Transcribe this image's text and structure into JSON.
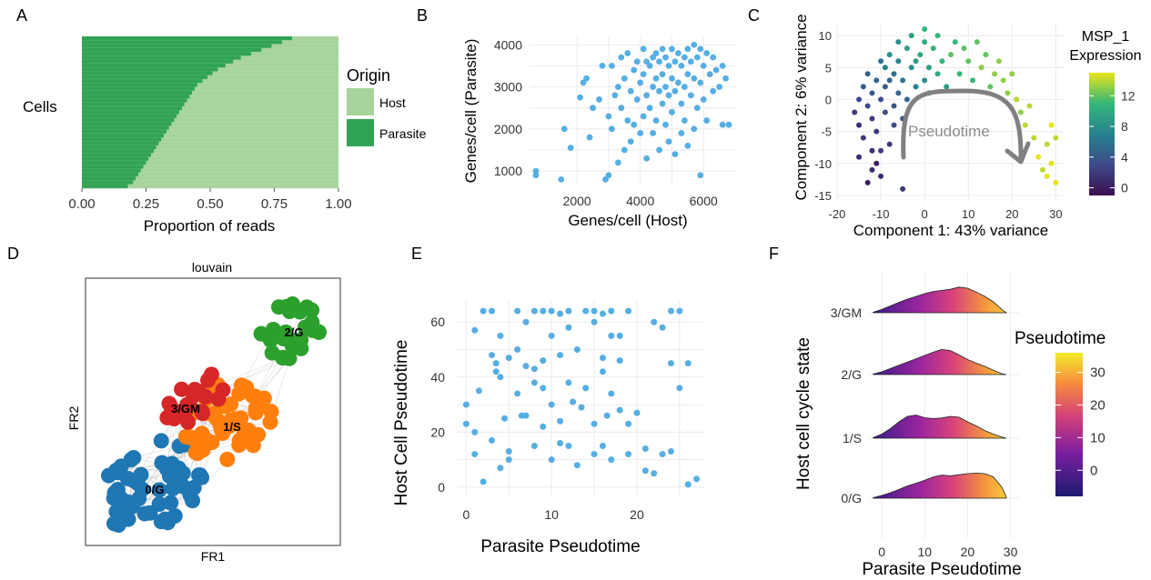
{
  "colors": {
    "host": "#a6d49a",
    "parasite": "#31a354",
    "point_blue": "#56aee3",
    "grid": "#ebebeb",
    "cluster_0": "#1f77b4",
    "cluster_1": "#ff7f0e",
    "cluster_2": "#2ca02c",
    "cluster_3": "#d62728",
    "arrow": "#7f7f7f"
  },
  "chart_data": [
    {
      "panel": "A",
      "type": "bar",
      "orientation": "horizontal-stacked",
      "title": "",
      "xlabel": "Proportion of reads",
      "ylabel": "Cells",
      "xlim": [
        0,
        1
      ],
      "xticks": [
        "0.00",
        "0.25",
        "0.50",
        "0.75",
        "1.00"
      ],
      "legend": {
        "title": "Origin",
        "placement": "right",
        "entries": [
          "Host",
          "Parasite"
        ]
      },
      "series": [
        {
          "name": "Host",
          "description": "host proportion per cell, sorted; parasite fraction rises from ~0.18 (bottom) to ~0.82 (top)"
        },
        {
          "name": "Parasite"
        }
      ],
      "parasite_fraction_sorted": [
        0.18,
        0.2,
        0.21,
        0.22,
        0.23,
        0.24,
        0.25,
        0.26,
        0.27,
        0.28,
        0.29,
        0.3,
        0.31,
        0.32,
        0.33,
        0.34,
        0.35,
        0.36,
        0.37,
        0.38,
        0.39,
        0.4,
        0.41,
        0.42,
        0.43,
        0.44,
        0.45,
        0.47,
        0.49,
        0.51,
        0.53,
        0.56,
        0.59,
        0.62,
        0.66,
        0.7,
        0.74,
        0.78,
        0.82
      ]
    },
    {
      "panel": "B",
      "type": "scatter",
      "title": "",
      "xlabel": "Genes/cell (Host)",
      "ylabel": "Genes/cell (Parasite)",
      "xlim": [
        500,
        7000
      ],
      "ylim": [
        700,
        4200
      ],
      "xticks": [
        "2000",
        "4000",
        "6000"
      ],
      "yticks": [
        "1000",
        "2000",
        "3000",
        "4000"
      ],
      "grid": true,
      "points": [
        [
          700,
          1000
        ],
        [
          700,
          900
        ],
        [
          1500,
          800
        ],
        [
          1600,
          2000
        ],
        [
          1800,
          1550
        ],
        [
          2100,
          2750
        ],
        [
          2200,
          3100
        ],
        [
          2300,
          3200
        ],
        [
          2400,
          1800
        ],
        [
          2500,
          2500
        ],
        [
          2700,
          2700
        ],
        [
          2800,
          3500
        ],
        [
          2900,
          800
        ],
        [
          3000,
          2300
        ],
        [
          3000,
          900
        ],
        [
          3100,
          3500
        ],
        [
          3100,
          2000
        ],
        [
          3200,
          2800
        ],
        [
          3300,
          3000
        ],
        [
          3300,
          1200
        ],
        [
          3400,
          3700
        ],
        [
          3400,
          2500
        ],
        [
          3500,
          3200
        ],
        [
          3500,
          1500
        ],
        [
          3600,
          3800
        ],
        [
          3600,
          2200
        ],
        [
          3700,
          2900
        ],
        [
          3700,
          1700
        ],
        [
          3800,
          3400
        ],
        [
          3800,
          2100
        ],
        [
          3900,
          3600
        ],
        [
          3900,
          2700
        ],
        [
          4000,
          3100
        ],
        [
          4000,
          1900
        ],
        [
          4100,
          3900
        ],
        [
          4100,
          3300
        ],
        [
          4100,
          2300
        ],
        [
          4200,
          3600
        ],
        [
          4200,
          2800
        ],
        [
          4200,
          1300
        ],
        [
          4300,
          3500
        ],
        [
          4300,
          2500
        ],
        [
          4400,
          3700
        ],
        [
          4400,
          3000
        ],
        [
          4400,
          1900
        ],
        [
          4500,
          3800
        ],
        [
          4500,
          3200
        ],
        [
          4500,
          2200
        ],
        [
          4600,
          3600
        ],
        [
          4600,
          2900
        ],
        [
          4600,
          1500
        ],
        [
          4700,
          3900
        ],
        [
          4700,
          3300
        ],
        [
          4700,
          2600
        ],
        [
          4800,
          3700
        ],
        [
          4800,
          3000
        ],
        [
          4800,
          2100
        ],
        [
          4900,
          3500
        ],
        [
          4900,
          2800
        ],
        [
          4900,
          1700
        ],
        [
          5000,
          3900
        ],
        [
          5000,
          3200
        ],
        [
          5000,
          2400
        ],
        [
          5100,
          3600
        ],
        [
          5100,
          2900
        ],
        [
          5100,
          1400
        ],
        [
          5200,
          3800
        ],
        [
          5200,
          3100
        ],
        [
          5300,
          3500
        ],
        [
          5300,
          2600
        ],
        [
          5300,
          1900
        ],
        [
          5400,
          3700
        ],
        [
          5400,
          3000
        ],
        [
          5400,
          2200
        ],
        [
          5500,
          3900
        ],
        [
          5500,
          3300
        ],
        [
          5500,
          1600
        ],
        [
          5600,
          3600
        ],
        [
          5600,
          2800
        ],
        [
          5700,
          4000
        ],
        [
          5700,
          3200
        ],
        [
          5700,
          2000
        ],
        [
          5800,
          3700
        ],
        [
          5800,
          2500
        ],
        [
          5900,
          3900
        ],
        [
          5900,
          3100
        ],
        [
          5900,
          900
        ],
        [
          6000,
          3500
        ],
        [
          6000,
          2700
        ],
        [
          6100,
          3800
        ],
        [
          6100,
          2200
        ],
        [
          6200,
          3300
        ],
        [
          6300,
          3700
        ],
        [
          6300,
          2900
        ],
        [
          6400,
          3400
        ],
        [
          6500,
          3000
        ],
        [
          6600,
          3500
        ],
        [
          6600,
          2100
        ],
        [
          6700,
          3200
        ],
        [
          6800,
          2100
        ]
      ]
    },
    {
      "panel": "C",
      "type": "scatter",
      "title": "",
      "xlabel": "Component 1: 43% variance",
      "ylabel": "Component 2: 6% variance",
      "xlim": [
        -20,
        32
      ],
      "ylim": [
        -16,
        12
      ],
      "xticks": [
        "-20",
        "-10",
        "0",
        "10",
        "20",
        "30"
      ],
      "yticks": [
        "-15",
        "-10",
        "-5",
        "0",
        "5",
        "10"
      ],
      "grid": true,
      "annotation": "Pseudotime",
      "colorbar": {
        "title": "MSP_1\nExpression",
        "range": [
          -1,
          15
        ],
        "ticks": [
          "0",
          "4",
          "8",
          "12"
        ]
      },
      "points": [
        [
          -16,
          -2,
          2
        ],
        [
          -15,
          0,
          3
        ],
        [
          -15,
          -4,
          1
        ],
        [
          -14,
          2,
          4
        ],
        [
          -14,
          -6,
          2
        ],
        [
          -13,
          -1,
          3
        ],
        [
          -13,
          4,
          5
        ],
        [
          -12,
          -8,
          1
        ],
        [
          -12,
          1,
          4
        ],
        [
          -12,
          -3,
          2
        ],
        [
          -11,
          3,
          5
        ],
        [
          -11,
          -10,
          0
        ],
        [
          -11,
          -5,
          2
        ],
        [
          -10,
          0,
          3
        ],
        [
          -10,
          6,
          6
        ],
        [
          -10,
          -12,
          1
        ],
        [
          -9,
          2,
          4
        ],
        [
          -9,
          -2,
          3
        ],
        [
          -9,
          5,
          7
        ],
        [
          -8,
          -7,
          2
        ],
        [
          -8,
          3,
          5
        ],
        [
          -8,
          7,
          8
        ],
        [
          -7,
          -1,
          4
        ],
        [
          -7,
          4,
          6
        ],
        [
          -7,
          -4,
          3
        ],
        [
          -6,
          1,
          5
        ],
        [
          -6,
          6,
          7
        ],
        [
          -6,
          9,
          8
        ],
        [
          -5,
          -3,
          4
        ],
        [
          -5,
          3,
          6
        ],
        [
          -5,
          -14,
          2
        ],
        [
          -4,
          8,
          9
        ],
        [
          -4,
          0,
          5
        ],
        [
          -3,
          5,
          8
        ],
        [
          -3,
          10,
          9
        ],
        [
          -2,
          2,
          7
        ],
        [
          -2,
          6,
          9
        ],
        [
          -1,
          7,
          10
        ],
        [
          0,
          3,
          8
        ],
        [
          0,
          9,
          10
        ],
        [
          0,
          11,
          11
        ],
        [
          1,
          5,
          9
        ],
        [
          1,
          1,
          8
        ],
        [
          2,
          8,
          11
        ],
        [
          3,
          4,
          10
        ],
        [
          3,
          10,
          11
        ],
        [
          4,
          6,
          11
        ],
        [
          5,
          2,
          9
        ],
        [
          6,
          7,
          12
        ],
        [
          7,
          9,
          11
        ],
        [
          8,
          4,
          11
        ],
        [
          9,
          8,
          12
        ],
        [
          10,
          6,
          12
        ],
        [
          11,
          3,
          11
        ],
        [
          12,
          9,
          12
        ],
        [
          13,
          5,
          13
        ],
        [
          14,
          7,
          12
        ],
        [
          15,
          2,
          12
        ],
        [
          16,
          4,
          13
        ],
        [
          17,
          6,
          13
        ],
        [
          18,
          3,
          13
        ],
        [
          19,
          1,
          13
        ],
        [
          20,
          4,
          13
        ],
        [
          21,
          0,
          14
        ],
        [
          22,
          -2,
          13
        ],
        [
          23,
          -4,
          14
        ],
        [
          24,
          -1,
          14
        ],
        [
          25,
          -6,
          14
        ],
        [
          26,
          -9,
          15
        ],
        [
          27,
          -11,
          14
        ],
        [
          28,
          -12,
          15
        ],
        [
          28,
          -7,
          14
        ],
        [
          29,
          -4,
          15
        ],
        [
          29,
          -10,
          15
        ],
        [
          30,
          -13,
          15
        ],
        [
          30,
          -6,
          14
        ],
        [
          -15,
          -9,
          1
        ],
        [
          -13,
          -13,
          0
        ],
        [
          -12,
          -11,
          1
        ],
        [
          -10,
          -8,
          2
        ]
      ]
    },
    {
      "panel": "D",
      "type": "scatter",
      "title": "louvain",
      "xlabel": "FR1",
      "ylabel": "FR2",
      "labels": [
        "0/G",
        "1/S",
        "2/G",
        "3/GM"
      ]
    },
    {
      "panel": "E",
      "type": "scatter",
      "title": "",
      "xlabel": "Parasite Pseudotime",
      "ylabel": "Host Cell Pseudotime",
      "xlim": [
        -1,
        28
      ],
      "ylim": [
        -3,
        68
      ],
      "xticks": [
        "0",
        "10",
        "20"
      ],
      "yticks": [
        "0",
        "20",
        "40",
        "60"
      ],
      "grid": true,
      "points": [
        [
          0,
          30
        ],
        [
          0,
          23
        ],
        [
          1,
          57
        ],
        [
          1,
          20
        ],
        [
          1,
          12
        ],
        [
          1.5,
          35
        ],
        [
          2,
          64
        ],
        [
          2,
          2
        ],
        [
          3,
          64
        ],
        [
          3,
          48
        ],
        [
          3,
          17
        ],
        [
          3.5,
          45
        ],
        [
          3.5,
          42
        ],
        [
          4,
          40
        ],
        [
          4,
          55
        ],
        [
          4,
          7
        ],
        [
          4.5,
          25
        ],
        [
          5,
          13
        ],
        [
          5,
          10
        ],
        [
          5,
          47
        ],
        [
          6,
          64
        ],
        [
          6,
          34
        ],
        [
          6,
          50
        ],
        [
          6.5,
          26
        ],
        [
          7,
          44
        ],
        [
          7,
          60
        ],
        [
          7,
          26
        ],
        [
          8,
          64
        ],
        [
          8,
          15
        ],
        [
          8,
          43
        ],
        [
          8,
          38
        ],
        [
          9,
          64
        ],
        [
          9,
          46
        ],
        [
          9,
          36
        ],
        [
          9,
          22
        ],
        [
          10,
          64
        ],
        [
          10,
          55
        ],
        [
          10,
          30
        ],
        [
          10,
          10
        ],
        [
          11,
          63
        ],
        [
          11,
          48
        ],
        [
          11,
          24
        ],
        [
          11,
          16
        ],
        [
          12,
          64
        ],
        [
          12,
          58
        ],
        [
          12,
          38
        ],
        [
          12,
          15
        ],
        [
          12.5,
          31
        ],
        [
          13,
          50
        ],
        [
          13,
          8
        ],
        [
          13.5,
          29
        ],
        [
          14,
          64
        ],
        [
          14,
          36
        ],
        [
          15,
          64
        ],
        [
          15,
          60
        ],
        [
          15,
          23
        ],
        [
          15,
          12
        ],
        [
          16,
          63
        ],
        [
          16,
          47
        ],
        [
          16,
          42
        ],
        [
          16,
          15
        ],
        [
          16.5,
          26
        ],
        [
          17,
          64
        ],
        [
          17,
          55
        ],
        [
          17,
          34
        ],
        [
          17,
          10
        ],
        [
          18,
          55
        ],
        [
          18,
          46
        ],
        [
          18,
          28
        ],
        [
          19,
          64
        ],
        [
          19,
          23
        ],
        [
          19,
          12
        ],
        [
          20,
          27
        ],
        [
          21,
          14
        ],
        [
          21,
          6
        ],
        [
          22,
          5
        ],
        [
          22,
          60
        ],
        [
          23,
          58
        ],
        [
          23,
          12
        ],
        [
          24,
          64
        ],
        [
          24,
          45
        ],
        [
          24,
          13
        ],
        [
          25,
          64
        ],
        [
          25,
          36
        ],
        [
          26,
          45
        ],
        [
          26,
          1
        ],
        [
          27,
          3
        ]
      ]
    },
    {
      "panel": "F",
      "type": "area",
      "title": "",
      "xlabel": "Parasite Pseudotime",
      "ylabel": "Host cell cycle state",
      "xlim": [
        -3,
        32
      ],
      "xticks": [
        "0",
        "10",
        "20",
        "30"
      ],
      "categories": [
        "0/G",
        "1/S",
        "2/G",
        "3/GM"
      ],
      "colorbar": {
        "title": "Pseudotime",
        "range": [
          -8,
          36
        ],
        "ticks": [
          "0",
          "10",
          "20",
          "30"
        ]
      },
      "density_x": [
        -2,
        0,
        2,
        4,
        6,
        8,
        10,
        12,
        14,
        16,
        18,
        20,
        22,
        24,
        26,
        28,
        29
      ],
      "densities": {
        "0/G": [
          0.02,
          0.1,
          0.2,
          0.32,
          0.45,
          0.55,
          0.66,
          0.78,
          0.85,
          0.82,
          0.86,
          0.9,
          0.92,
          0.9,
          0.78,
          0.4,
          0.05
        ],
        "1/S": [
          0.02,
          0.15,
          0.35,
          0.6,
          0.8,
          0.85,
          0.75,
          0.72,
          0.74,
          0.8,
          0.77,
          0.6,
          0.45,
          0.28,
          0.15,
          0.04,
          0.0
        ],
        "2/G": [
          0.02,
          0.1,
          0.22,
          0.34,
          0.46,
          0.58,
          0.7,
          0.82,
          0.92,
          0.88,
          0.72,
          0.55,
          0.42,
          0.3,
          0.16,
          0.03,
          0.0
        ],
        "3/GM": [
          0.02,
          0.12,
          0.25,
          0.38,
          0.5,
          0.6,
          0.7,
          0.78,
          0.82,
          0.86,
          0.94,
          0.9,
          0.76,
          0.6,
          0.4,
          0.12,
          0.0
        ]
      }
    }
  ],
  "panel_letters": [
    "A",
    "B",
    "C",
    "D",
    "E",
    "F"
  ]
}
